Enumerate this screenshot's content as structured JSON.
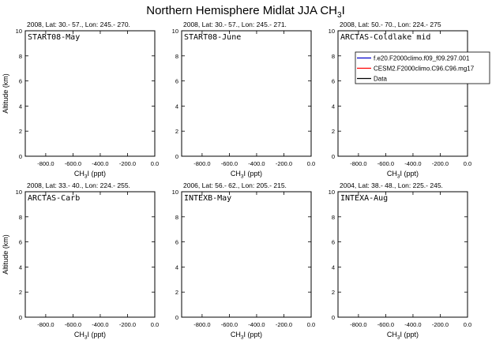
{
  "figure": {
    "title_main": "Northern Hemisphere Midlat JJA CH",
    "title_sub": "3",
    "title_tail": "I",
    "xlabel_main": "CH",
    "xlabel_sub": "3",
    "xlabel_tail": "I (ppt)",
    "ylabel": "Altitude (km)"
  },
  "chart_data": [
    {
      "type": "line",
      "header": "2008, Lat:  30.- 57., Lon: 245.- 270.",
      "campaign": "START08-May",
      "xlim": [
        -950,
        0
      ],
      "ylim": [
        0,
        10
      ],
      "xticks": [
        "-800.0",
        "-600.0",
        "-400.0",
        "-200.0",
        "0.0"
      ],
      "yticks": [
        "0",
        "2",
        "4",
        "6",
        "8",
        "10"
      ],
      "series": []
    },
    {
      "type": "line",
      "header": "2008, Lat:  30.- 57., Lon: 245.- 271.",
      "campaign": "START08-June",
      "xlim": [
        -950,
        0
      ],
      "ylim": [
        0,
        10
      ],
      "xticks": [
        "-800.0",
        "-600.0",
        "-400.0",
        "-200.0",
        "0.0"
      ],
      "yticks": [
        "0",
        "2",
        "4",
        "6",
        "8",
        "10"
      ],
      "series": []
    },
    {
      "type": "line",
      "header": "2008, Lat:  50.- 70., Lon: 224.- 275",
      "campaign": "ARCTAS-Coldlake mid",
      "xlim": [
        -950,
        0
      ],
      "ylim": [
        0,
        10
      ],
      "xticks": [
        "-800.0",
        "-600.0",
        "-400.0",
        "-200.0",
        "0.0"
      ],
      "yticks": [
        "0",
        "2",
        "4",
        "6",
        "8",
        "10"
      ],
      "legend_position": "top-right",
      "series": [
        {
          "name": "f.e20.F2000climo.f09_f09.297.001",
          "color": "#0000cc",
          "values": []
        },
        {
          "name": "CESM2.F2000climo.C96.C96.mg17",
          "color": "#ff0000",
          "values": []
        },
        {
          "name": "Data",
          "color": "#000000",
          "values": []
        }
      ]
    },
    {
      "type": "line",
      "header": "2008, Lat:  33.- 40., Lon: 224.- 255.",
      "campaign": "ARCTAS-Carb",
      "xlim": [
        -950,
        0
      ],
      "ylim": [
        0,
        10
      ],
      "xticks": [
        "-800.0",
        "-600.0",
        "-400.0",
        "-200.0",
        "0.0"
      ],
      "yticks": [
        "0",
        "2",
        "4",
        "6",
        "8",
        "10"
      ],
      "series": []
    },
    {
      "type": "line",
      "header": "2006, Lat:  56.- 62., Lon: 205.- 215.",
      "campaign": "INTEXB-May",
      "xlim": [
        -950,
        0
      ],
      "ylim": [
        0,
        10
      ],
      "xticks": [
        "-800.0",
        "-600.0",
        "-400.0",
        "-200.0",
        "0.0"
      ],
      "yticks": [
        "0",
        "2",
        "4",
        "6",
        "8",
        "10"
      ],
      "series": []
    },
    {
      "type": "line",
      "header": "2004, Lat:  38.- 48., Lon: 225.- 245.",
      "campaign": "INTEXA-Aug",
      "xlim": [
        -950,
        0
      ],
      "ylim": [
        0,
        10
      ],
      "xticks": [
        "-800.0",
        "-600.0",
        "-400.0",
        "-200.0",
        "0.0"
      ],
      "yticks": [
        "0",
        "2",
        "4",
        "6",
        "8",
        "10"
      ],
      "series": []
    }
  ]
}
